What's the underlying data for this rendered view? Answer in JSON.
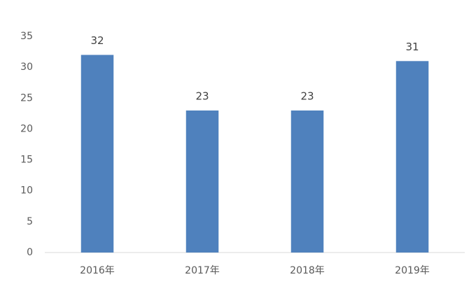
{
  "chart_data": {
    "type": "bar",
    "categories": [
      "2016年",
      "2017年",
      "2018年",
      "2019年"
    ],
    "values": [
      32,
      23,
      23,
      31
    ],
    "color": "#4f81bd",
    "ylim": [
      0,
      35
    ],
    "yticks": [
      0,
      5,
      10,
      15,
      20,
      25,
      30,
      35
    ],
    "grid": false
  }
}
